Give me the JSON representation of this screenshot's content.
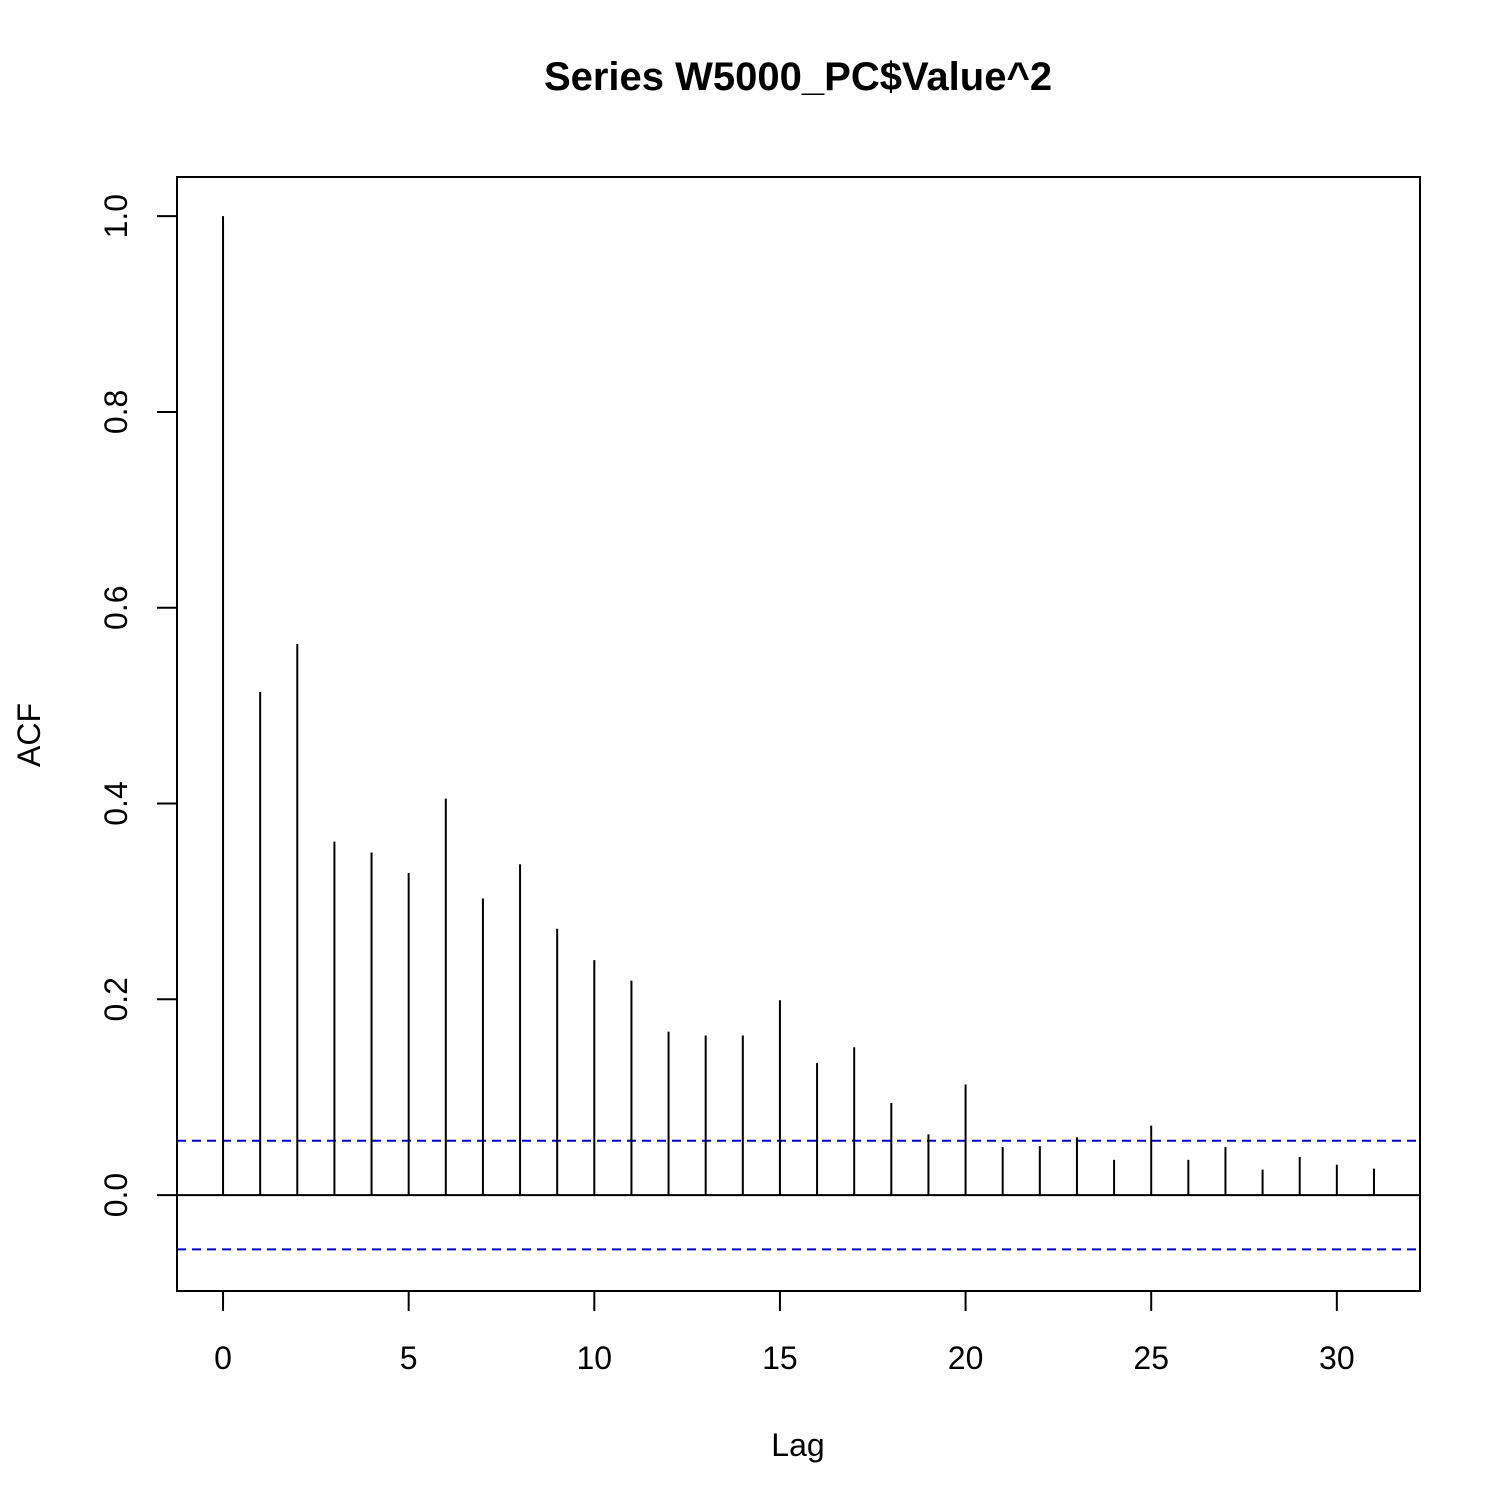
{
  "chart_data": {
    "type": "bar",
    "title": "Series  W5000_PC$Value^2",
    "xlabel": "Lag",
    "ylabel": "ACF",
    "xlim": [
      -1.24,
      32.24
    ],
    "ylim": [
      -0.098,
      1.04
    ],
    "x_ticks": [
      0,
      5,
      10,
      15,
      20,
      25,
      30
    ],
    "y_ticks": [
      0.0,
      0.2,
      0.4,
      0.6,
      0.8,
      1.0
    ],
    "y_tick_labels": [
      "0.0",
      "0.2",
      "0.4",
      "0.6",
      "0.8",
      "1.0"
    ],
    "x": [
      0,
      1,
      2,
      3,
      4,
      5,
      6,
      7,
      8,
      9,
      10,
      11,
      12,
      13,
      14,
      15,
      16,
      17,
      18,
      19,
      20,
      21,
      22,
      23,
      24,
      25,
      26,
      27,
      28,
      29,
      30,
      31
    ],
    "values": [
      1.0,
      0.514,
      0.563,
      0.361,
      0.35,
      0.329,
      0.405,
      0.303,
      0.338,
      0.272,
      0.24,
      0.219,
      0.167,
      0.163,
      0.163,
      0.199,
      0.135,
      0.151,
      0.094,
      0.062,
      0.113,
      0.049,
      0.05,
      0.059,
      0.036,
      0.071,
      0.036,
      0.049,
      0.026,
      0.039,
      0.031,
      0.027
    ],
    "confidence_bound": 0.0555,
    "colors": {
      "bars": "#000000",
      "confidence": "#0000cc",
      "zero_line": "#000000"
    },
    "grid": false
  }
}
